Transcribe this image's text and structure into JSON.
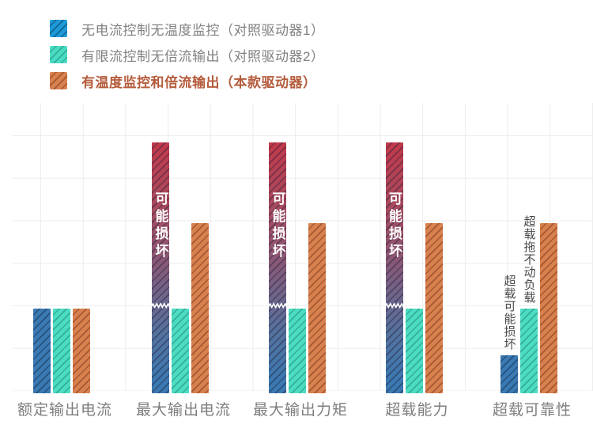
{
  "legend": {
    "items": [
      {
        "label": "无电流控制无温度监控（对照驱动器1）",
        "key": "blue",
        "emphasis": false
      },
      {
        "label": "有限流控制无倍流输出（对照驱动器2）",
        "key": "teal",
        "emphasis": false
      },
      {
        "label": "有温度监控和倍流输出（本款驱动器）",
        "key": "orange",
        "emphasis": true
      }
    ]
  },
  "colors": {
    "legend_blue": "#1d9ad8",
    "legend_teal": "#4adcc3",
    "legend_orange": "#d8804e",
    "bar_blue": "#3a79b2",
    "bar_teal": "#4cdcc2",
    "bar_orange": "#d8804e",
    "damage_red": "#c2394b",
    "grid_line": "#ededed",
    "legend_text_gray": "#808080",
    "accent_text_orange": "#b45b3b",
    "annotation_dark": "#4a4a4a",
    "inside_label_white": "#ffffff"
  },
  "chart_data": {
    "type": "bar",
    "title": "",
    "categories": [
      "额定输出电流",
      "最大输出电流",
      "最大输出力矩",
      "超载能力",
      "超载可靠性"
    ],
    "ylabel": "",
    "xlabel": "",
    "ylim": [
      0,
      6.8
    ],
    "grid": true,
    "legend_position": "top-left",
    "y_axis_ticks_visible": false,
    "break_level": 2,
    "series": [
      {
        "name": "无电流控制无温度监控（对照驱动器1）",
        "key": "blue",
        "values": [
          2,
          5.9,
          5.9,
          5.9,
          0.9
        ],
        "broken": [
          false,
          true,
          true,
          true,
          false
        ],
        "inside_labels": [
          "",
          "可能损坏",
          "可能损坏",
          "可能损坏",
          ""
        ],
        "above_labels": [
          "",
          "",
          "",
          "",
          "超载可能损坏"
        ]
      },
      {
        "name": "有限流控制无倍流输出（对照驱动器2）",
        "key": "teal",
        "values": [
          2,
          2,
          2,
          2,
          2
        ],
        "broken": [
          false,
          false,
          false,
          false,
          false
        ],
        "inside_labels": [
          "",
          "",
          "",
          "",
          ""
        ],
        "above_labels": [
          "",
          "",
          "",
          "",
          "超载拖不动负载"
        ]
      },
      {
        "name": "有温度监控和倍流输出（本款驱动器）",
        "key": "orange",
        "values": [
          2,
          4,
          4,
          4,
          4
        ],
        "broken": [
          false,
          false,
          false,
          false,
          false
        ],
        "inside_labels": [
          "",
          "",
          "",
          "",
          ""
        ],
        "above_labels": [
          "",
          "",
          "",
          "",
          ""
        ]
      }
    ]
  }
}
